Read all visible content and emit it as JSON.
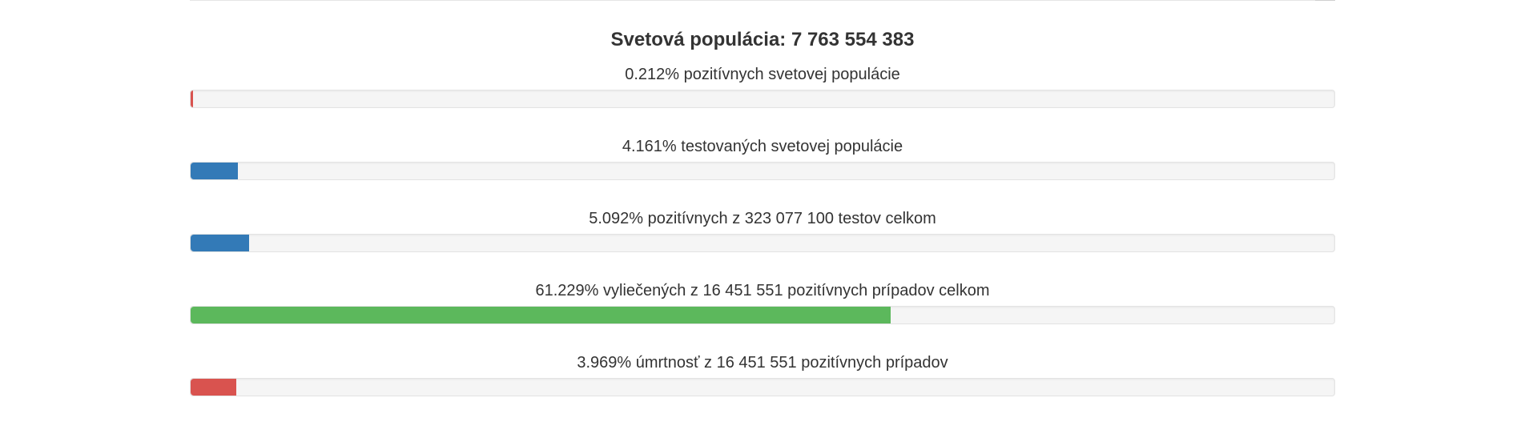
{
  "population": {
    "title": "Svetová populácia: 7 763 554 383"
  },
  "stats": [
    {
      "label": "0.212% pozitívnych svetovej populácie",
      "percent": 0.212,
      "color": "#d9534f"
    },
    {
      "label": "4.161% testovaných svetovej populácie",
      "percent": 4.161,
      "color": "#337ab7"
    },
    {
      "label": "5.092% pozitívnych z 323 077 100 testov celkom",
      "percent": 5.092,
      "color": "#337ab7"
    },
    {
      "label": "61.229% vyliečených z 16 451 551 pozitívnych prípadov celkom",
      "percent": 61.229,
      "color": "#5cb85c"
    },
    {
      "label": "3.969% úmrtnosť z 16 451 551 pozitívnych prípadov",
      "percent": 3.969,
      "color": "#d9534f"
    }
  ]
}
